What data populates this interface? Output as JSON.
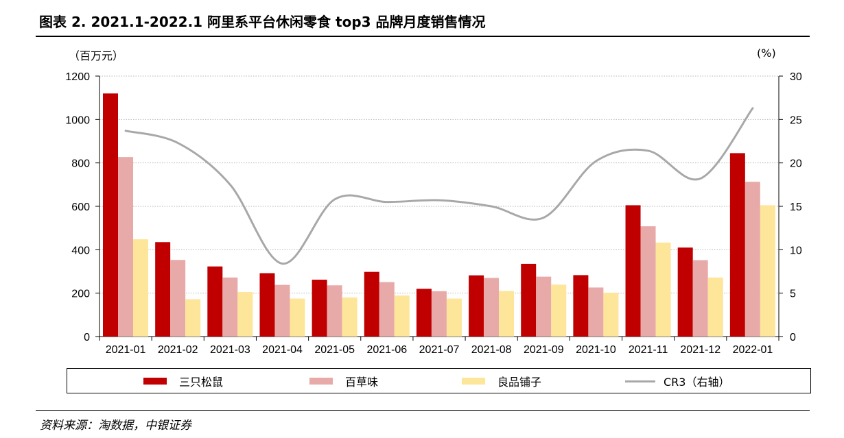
{
  "title": "图表 2. 2021.1-2022.1 阿里系平台休闲零食 top3 品牌月度销售情况",
  "source": "资料来源：淘数据，中银证券",
  "colors": {
    "series1": "#c00000",
    "series2": "#e8aaa8",
    "series3": "#fde59a",
    "line": "#a8a8a8",
    "grid": "#b5b5b5"
  },
  "chart_data": {
    "type": "bar",
    "categories": [
      "2021-01",
      "2021-02",
      "2021-03",
      "2021-04",
      "2021-05",
      "2021-06",
      "2021-07",
      "2021-08",
      "2021-09",
      "2021-10",
      "2021-11",
      "2021-12",
      "2022-01"
    ],
    "series": [
      {
        "name": "三只松鼠",
        "type": "bar",
        "axis": "left",
        "values": [
          1120,
          435,
          323,
          292,
          262,
          298,
          220,
          282,
          335,
          283,
          605,
          410,
          845
        ]
      },
      {
        "name": "百草味",
        "type": "bar",
        "axis": "left",
        "values": [
          827,
          353,
          272,
          238,
          236,
          251,
          209,
          270,
          276,
          226,
          508,
          352,
          713
        ]
      },
      {
        "name": "良品铺子",
        "type": "bar",
        "axis": "left",
        "values": [
          448,
          172,
          205,
          175,
          180,
          189,
          175,
          210,
          239,
          202,
          433,
          272,
          605
        ]
      },
      {
        "name": "CR3（右轴）",
        "type": "line",
        "axis": "right",
        "values": [
          23.7,
          22.3,
          17.5,
          8.4,
          15.8,
          15.5,
          15.7,
          15.0,
          13.7,
          20.2,
          21.4,
          18.2,
          26.3
        ]
      }
    ],
    "ylabel_left": "（百万元）",
    "ylabel_right": "(%)",
    "ylim_left": [
      0,
      1200
    ],
    "ylim_right": [
      0,
      30
    ],
    "yticks_left": [
      "0",
      "200",
      "400",
      "600",
      "800",
      "1000",
      "1200"
    ],
    "yticks_right": [
      "0",
      "5",
      "10",
      "15",
      "20",
      "25",
      "30"
    ],
    "grid": true,
    "legend_position": "bottom"
  }
}
